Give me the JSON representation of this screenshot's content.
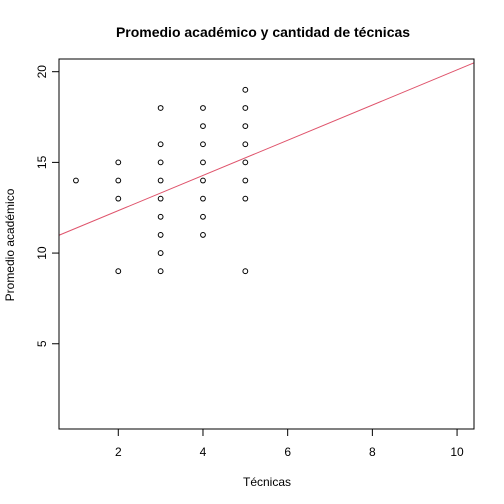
{
  "chart_data": {
    "type": "scatter",
    "title": "Promedio académico y cantidad de técnicas",
    "xlabel": "Técnicas",
    "ylabel": "Promedio académico",
    "xlim": [
      0.6,
      10.4
    ],
    "ylim": [
      0.3,
      20.7
    ],
    "xticks": [
      2,
      4,
      6,
      8,
      10
    ],
    "yticks": [
      5,
      10,
      15,
      20
    ],
    "grid": false,
    "series": [
      {
        "points": [
          [
            1,
            14
          ],
          [
            2,
            9
          ],
          [
            2,
            13
          ],
          [
            2,
            14
          ],
          [
            2,
            15
          ],
          [
            3,
            9
          ],
          [
            3,
            10
          ],
          [
            3,
            11
          ],
          [
            3,
            12
          ],
          [
            3,
            13
          ],
          [
            3,
            14
          ],
          [
            3,
            15
          ],
          [
            3,
            16
          ],
          [
            3,
            18
          ],
          [
            4,
            11
          ],
          [
            4,
            12
          ],
          [
            4,
            13
          ],
          [
            4,
            14
          ],
          [
            4,
            15
          ],
          [
            4,
            16
          ],
          [
            4,
            17
          ],
          [
            4,
            18
          ],
          [
            5,
            9
          ],
          [
            5,
            13
          ],
          [
            5,
            14
          ],
          [
            5,
            15
          ],
          [
            5,
            16
          ],
          [
            5,
            17
          ],
          [
            5,
            18
          ],
          [
            5,
            19
          ]
        ],
        "point_color": "#000000"
      }
    ],
    "regression_line": {
      "intercept": 10.4,
      "slope": 0.97,
      "color": "#df536b"
    }
  }
}
